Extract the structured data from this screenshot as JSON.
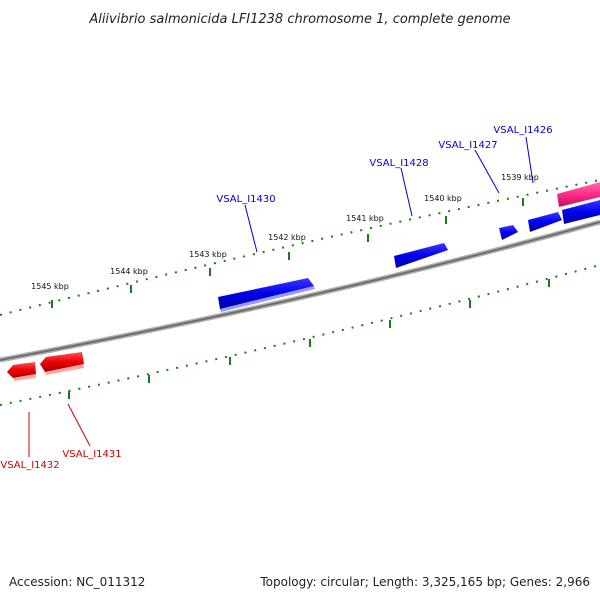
{
  "header": {
    "title": "Aliivibrio salmonicida LFI1238 chromosome 1, complete genome"
  },
  "footer": {
    "accession": "Accession: NC_011312",
    "summary": "Topology: circular; Length: 3,325,165 bp; Genes: 2,966"
  },
  "scale": {
    "ticks": [
      {
        "label": "1545 kbp"
      },
      {
        "label": "1544 kbp"
      },
      {
        "label": "1543 kbp"
      },
      {
        "label": "1542 kbp"
      },
      {
        "label": "1541 kbp"
      },
      {
        "label": "1540 kbp"
      },
      {
        "label": "1539 kbp"
      }
    ]
  },
  "genes": {
    "forward_labels": [
      "VSAL_I1430",
      "VSAL_I1428",
      "VSAL_I1427",
      "VSAL_I1426"
    ],
    "reverse_labels": [
      "VSAL_I1432",
      "VSAL_I1431"
    ]
  },
  "colors": {
    "forward_gene": "#0000ee",
    "reverse_gene": "#ee0000",
    "highlight_gene": "#ff2a8a",
    "backbone": "#888888",
    "tick": "#1a7a1a"
  }
}
